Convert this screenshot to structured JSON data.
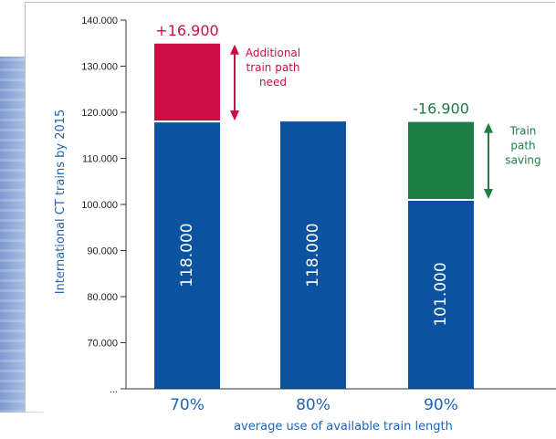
{
  "chart_data": {
    "type": "bar",
    "ylabel": "International CT trains by 2015",
    "xlabel": "average use of available train length",
    "ylim": [
      60000,
      140000
    ],
    "yticks": [
      "140.000",
      "130.000",
      "120.000",
      "110.000",
      "100.000",
      "90.000",
      "80.000",
      "70.000",
      "..."
    ],
    "categories": [
      "70%",
      "80%",
      "90%"
    ],
    "bars": [
      {
        "base_value": 118000,
        "base_label": "118.000",
        "extra_value": 16900,
        "extra_label": "+16.900",
        "annotation": [
          "Additional",
          "train path",
          "need"
        ]
      },
      {
        "base_value": 118000,
        "base_label": "118.000"
      },
      {
        "base_value": 101000,
        "base_label": "101.000",
        "extra_value": 16900,
        "extra_label": "-16.900",
        "annotation": [
          "Train",
          "path",
          "saving"
        ]
      }
    ],
    "colors": {
      "base": "#0b52a0",
      "need": "#cc0e45",
      "saving": "#1c7d45",
      "text_blue": "#1f63b4"
    }
  }
}
